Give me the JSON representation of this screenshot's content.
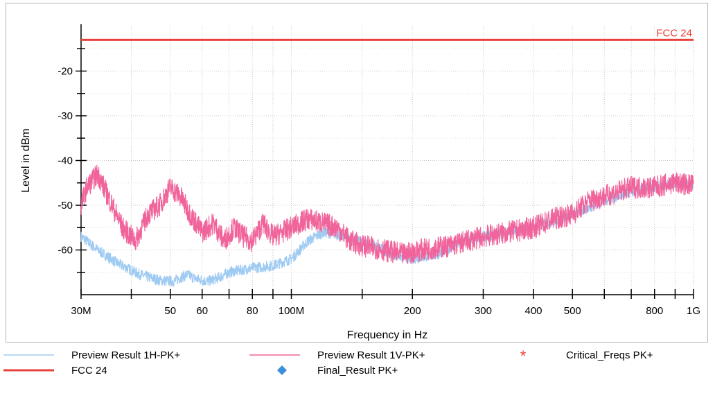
{
  "chart_data": {
    "type": "line",
    "xlabel": "Frequency in Hz",
    "ylabel": "Level in dBm",
    "x_scale": "log",
    "xlim": [
      30000000,
      1000000000
    ],
    "ylim": [
      -70,
      -10
    ],
    "x_ticks": [
      {
        "value": 30000000,
        "label": "30M"
      },
      {
        "value": 50000000,
        "label": "50"
      },
      {
        "value": 60000000,
        "label": "60"
      },
      {
        "value": 80000000,
        "label": "80"
      },
      {
        "value": 100000000,
        "label": "100M"
      },
      {
        "value": 200000000,
        "label": "200"
      },
      {
        "value": 300000000,
        "label": "300"
      },
      {
        "value": 400000000,
        "label": "400"
      },
      {
        "value": 500000000,
        "label": "500"
      },
      {
        "value": 800000000,
        "label": "800"
      },
      {
        "value": 1000000000,
        "label": "1G"
      }
    ],
    "y_ticks": [
      {
        "value": -20,
        "label": "-20"
      },
      {
        "value": -30,
        "label": "-30"
      },
      {
        "value": -40,
        "label": "-40"
      },
      {
        "value": -50,
        "label": "-50"
      },
      {
        "value": -60,
        "label": "-60"
      }
    ],
    "grid": true,
    "legend_position": "bottom",
    "series": [
      {
        "name": "Preview Result 1H-PK+",
        "color": "#9fcbf2",
        "style": "line",
        "noise_amplitude": 1.2,
        "x": [
          30000000,
          33000000,
          37000000,
          42000000,
          47000000,
          51000000,
          55000000,
          58000000,
          62000000,
          66000000,
          70000000,
          75000000,
          80000000,
          90000000,
          100000000,
          110000000,
          120000000,
          130000000,
          140000000,
          160000000,
          180000000,
          200000000,
          230000000,
          270000000,
          300000000,
          350000000,
          400000000,
          450000000,
          500000000,
          550000000,
          600000000,
          700000000,
          800000000,
          900000000,
          1000000000
        ],
        "y": [
          -57,
          -60,
          -63,
          -65.5,
          -66.8,
          -67,
          -65.5,
          -66.5,
          -67,
          -66.2,
          -65,
          -64.5,
          -64,
          -63.5,
          -62,
          -58,
          -56,
          -56.5,
          -57.5,
          -59,
          -61,
          -62,
          -61,
          -58,
          -57,
          -56,
          -55,
          -53.5,
          -52,
          -50.5,
          -49,
          -47,
          -46,
          -45,
          -45.5
        ]
      },
      {
        "name": "Preview Result 1V-PK+",
        "color": "#f0649b",
        "style": "line",
        "noise_amplitude": 2.5,
        "x": [
          30000000,
          31000000,
          33000000,
          35000000,
          38000000,
          41000000,
          44000000,
          47000000,
          50000000,
          53000000,
          56000000,
          60000000,
          64000000,
          68000000,
          72000000,
          76000000,
          80000000,
          85000000,
          90000000,
          95000000,
          100000000,
          110000000,
          120000000,
          130000000,
          140000000,
          150000000,
          170000000,
          190000000,
          210000000,
          250000000,
          300000000,
          350000000,
          400000000,
          450000000,
          500000000,
          550000000,
          600000000,
          700000000,
          800000000,
          900000000,
          1000000000
        ],
        "y": [
          -50,
          -46,
          -43,
          -48,
          -55,
          -58,
          -52,
          -50,
          -46,
          -48,
          -52,
          -56,
          -54,
          -58,
          -55,
          -57,
          -58,
          -54,
          -57,
          -56,
          -55,
          -53,
          -54,
          -55,
          -58,
          -59,
          -60,
          -61,
          -60,
          -59,
          -57,
          -56,
          -55,
          -53,
          -52,
          -49,
          -48,
          -46,
          -46,
          -45,
          -45.5
        ]
      },
      {
        "name": "FCC 24",
        "color": "#e8403a",
        "style": "limit",
        "x": [
          30000000,
          1000000000
        ],
        "y": [
          -13,
          -13
        ]
      },
      {
        "name": "Final_Result PK+",
        "color": "#3d8fd9",
        "style": "marker",
        "x": [],
        "y": []
      },
      {
        "name": "Critical_Freqs PK+",
        "color": "#e8403a",
        "style": "marker",
        "x": [],
        "y": []
      }
    ],
    "annotations": [
      {
        "text": "FCC 24",
        "x": 1000000000,
        "y": -13,
        "color": "#e8403a"
      }
    ]
  }
}
